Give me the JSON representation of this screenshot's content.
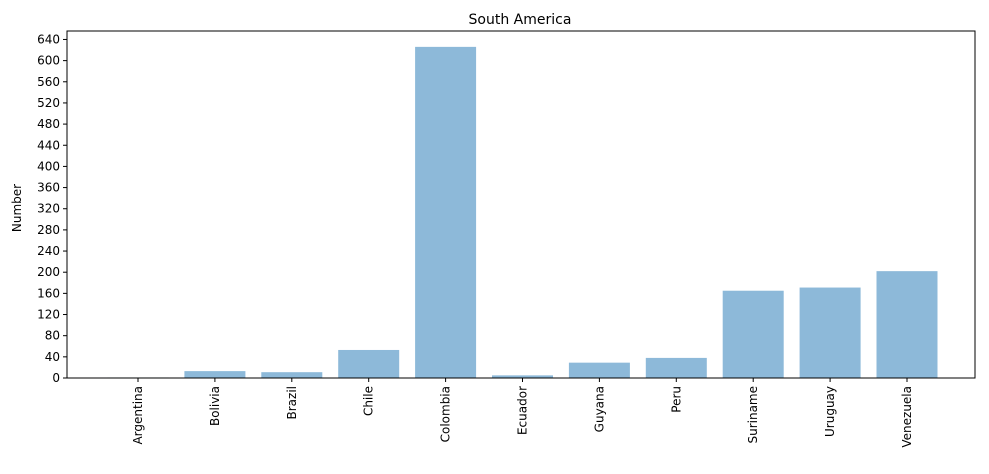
{
  "chart_data": {
    "type": "bar",
    "title": "South America",
    "xlabel": "",
    "ylabel": "Number",
    "categories": [
      "Argentina",
      "Bolivia",
      "Brazil",
      "Chile",
      "Colombia",
      "Ecuador",
      "Guyana",
      "Peru",
      "Suriname",
      "Uruguay",
      "Venezuela"
    ],
    "values": [
      1,
      13,
      11,
      53,
      626,
      5,
      29,
      38,
      165,
      171,
      202
    ],
    "ylim": [
      0,
      656
    ],
    "yticks": [
      0,
      40,
      80,
      120,
      160,
      200,
      240,
      280,
      320,
      360,
      400,
      440,
      480,
      520,
      560,
      600,
      640
    ],
    "grid": false,
    "bar_color": "#8db9d9"
  }
}
